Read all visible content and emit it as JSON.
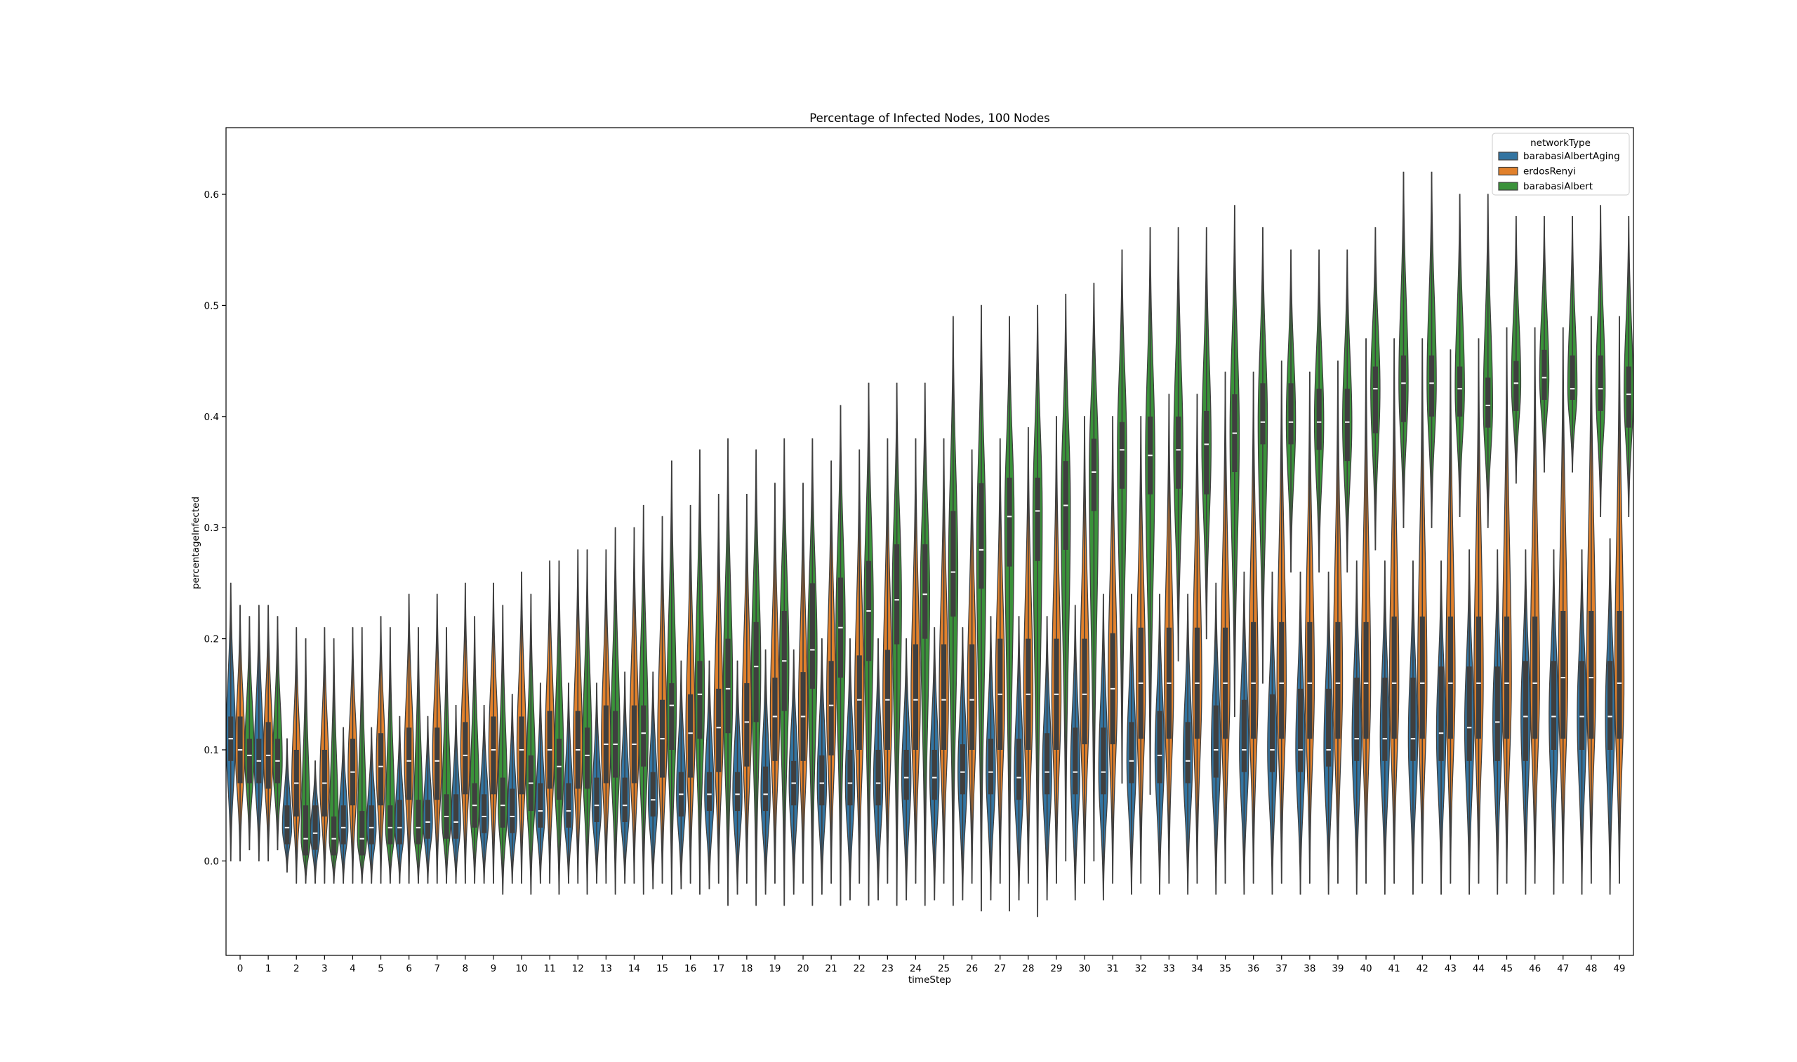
{
  "chart_data": {
    "type": "violin",
    "title": "Percentage of Infected Nodes, 100 Nodes",
    "xlabel": "timeStep",
    "ylabel": "percentageInfected",
    "ylim": [
      -0.085,
      0.66
    ],
    "yticks": [
      "0.0",
      "0.1",
      "0.2",
      "0.3",
      "0.4",
      "0.5",
      "0.6"
    ],
    "categories": [
      "0",
      "1",
      "2",
      "3",
      "4",
      "5",
      "6",
      "7",
      "8",
      "9",
      "10",
      "11",
      "12",
      "13",
      "14",
      "15",
      "16",
      "17",
      "18",
      "19",
      "20",
      "21",
      "22",
      "23",
      "24",
      "25",
      "26",
      "27",
      "28",
      "29",
      "30",
      "31",
      "32",
      "33",
      "34",
      "35",
      "36",
      "37",
      "38",
      "39",
      "40",
      "41",
      "42",
      "43",
      "44",
      "45",
      "46",
      "47",
      "48",
      "49"
    ],
    "legend": {
      "title": "networkType",
      "placement": "top-right",
      "entries": [
        "barabasiAlbertAging",
        "erdosRenyi",
        "barabasiAlbert"
      ]
    },
    "colors": {
      "barabasiAlbertAging": "#3274a1",
      "erdosRenyi": "#e1812c",
      "barabasiAlbert": "#3a923a",
      "outline": "#3f3f3f"
    },
    "series": [
      {
        "name": "barabasiAlbertAging",
        "median": [
          0.11,
          0.09,
          0.03,
          0.025,
          0.03,
          0.03,
          0.03,
          0.035,
          0.035,
          0.04,
          0.04,
          0.045,
          0.045,
          0.05,
          0.05,
          0.055,
          0.06,
          0.06,
          0.06,
          0.06,
          0.07,
          0.07,
          0.07,
          0.07,
          0.075,
          0.075,
          0.08,
          0.08,
          0.075,
          0.08,
          0.08,
          0.08,
          0.09,
          0.095,
          0.09,
          0.1,
          0.1,
          0.1,
          0.1,
          0.1,
          0.11,
          0.11,
          0.11,
          0.115,
          0.12,
          0.125,
          0.13,
          0.13,
          0.13,
          0.13
        ],
        "q1": [
          0.09,
          0.07,
          0.015,
          0.01,
          0.015,
          0.015,
          0.015,
          0.02,
          0.02,
          0.025,
          0.025,
          0.03,
          0.03,
          0.035,
          0.035,
          0.04,
          0.04,
          0.045,
          0.045,
          0.045,
          0.05,
          0.05,
          0.05,
          0.05,
          0.055,
          0.055,
          0.06,
          0.06,
          0.055,
          0.06,
          0.06,
          0.06,
          0.07,
          0.07,
          0.07,
          0.075,
          0.08,
          0.08,
          0.08,
          0.085,
          0.09,
          0.09,
          0.09,
          0.09,
          0.09,
          0.09,
          0.09,
          0.1,
          0.1,
          0.1
        ],
        "q3": [
          0.13,
          0.11,
          0.05,
          0.05,
          0.05,
          0.05,
          0.055,
          0.055,
          0.06,
          0.06,
          0.065,
          0.07,
          0.07,
          0.075,
          0.075,
          0.08,
          0.08,
          0.08,
          0.08,
          0.085,
          0.09,
          0.095,
          0.1,
          0.1,
          0.1,
          0.1,
          0.105,
          0.11,
          0.11,
          0.115,
          0.12,
          0.12,
          0.125,
          0.135,
          0.125,
          0.14,
          0.145,
          0.15,
          0.155,
          0.155,
          0.165,
          0.165,
          0.165,
          0.175,
          0.175,
          0.175,
          0.18,
          0.18,
          0.18,
          0.18
        ],
        "min": [
          0.0,
          0.0,
          -0.01,
          -0.02,
          -0.02,
          -0.02,
          -0.02,
          -0.02,
          -0.02,
          -0.02,
          -0.02,
          -0.02,
          -0.02,
          -0.02,
          -0.02,
          -0.025,
          -0.025,
          -0.025,
          -0.03,
          -0.03,
          -0.03,
          -0.03,
          -0.035,
          -0.035,
          -0.035,
          -0.035,
          -0.035,
          -0.035,
          -0.035,
          -0.035,
          -0.035,
          -0.035,
          -0.03,
          -0.03,
          -0.03,
          -0.03,
          -0.03,
          -0.03,
          -0.03,
          -0.03,
          -0.03,
          -0.03,
          -0.03,
          -0.03,
          -0.03,
          -0.03,
          -0.03,
          -0.03,
          -0.03,
          -0.03
        ],
        "max": [
          0.25,
          0.23,
          0.11,
          0.09,
          0.12,
          0.12,
          0.13,
          0.13,
          0.14,
          0.14,
          0.15,
          0.16,
          0.16,
          0.16,
          0.17,
          0.17,
          0.18,
          0.18,
          0.18,
          0.19,
          0.19,
          0.2,
          0.2,
          0.2,
          0.2,
          0.21,
          0.21,
          0.22,
          0.22,
          0.22,
          0.23,
          0.24,
          0.24,
          0.24,
          0.24,
          0.25,
          0.26,
          0.26,
          0.26,
          0.26,
          0.27,
          0.27,
          0.27,
          0.27,
          0.28,
          0.28,
          0.28,
          0.28,
          0.28,
          0.29
        ]
      },
      {
        "name": "erdosRenyi",
        "median": [
          0.1,
          0.095,
          0.07,
          0.07,
          0.08,
          0.085,
          0.09,
          0.09,
          0.095,
          0.1,
          0.1,
          0.1,
          0.1,
          0.105,
          0.105,
          0.11,
          0.115,
          0.12,
          0.125,
          0.13,
          0.13,
          0.14,
          0.145,
          0.145,
          0.145,
          0.145,
          0.145,
          0.15,
          0.15,
          0.15,
          0.15,
          0.155,
          0.16,
          0.16,
          0.16,
          0.16,
          0.16,
          0.16,
          0.16,
          0.16,
          0.16,
          0.16,
          0.16,
          0.16,
          0.16,
          0.16,
          0.16,
          0.165,
          0.165,
          0.16
        ],
        "q1": [
          0.07,
          0.065,
          0.04,
          0.04,
          0.05,
          0.05,
          0.055,
          0.055,
          0.06,
          0.06,
          0.06,
          0.065,
          0.065,
          0.07,
          0.07,
          0.075,
          0.075,
          0.08,
          0.085,
          0.09,
          0.09,
          0.095,
          0.1,
          0.1,
          0.1,
          0.1,
          0.1,
          0.1,
          0.1,
          0.1,
          0.105,
          0.105,
          0.11,
          0.11,
          0.11,
          0.11,
          0.11,
          0.11,
          0.11,
          0.11,
          0.11,
          0.11,
          0.11,
          0.11,
          0.11,
          0.11,
          0.11,
          0.11,
          0.11,
          0.11
        ],
        "q3": [
          0.13,
          0.125,
          0.1,
          0.1,
          0.11,
          0.115,
          0.12,
          0.12,
          0.125,
          0.13,
          0.13,
          0.135,
          0.135,
          0.14,
          0.14,
          0.145,
          0.15,
          0.155,
          0.16,
          0.165,
          0.17,
          0.18,
          0.185,
          0.19,
          0.195,
          0.195,
          0.195,
          0.2,
          0.2,
          0.2,
          0.2,
          0.205,
          0.21,
          0.21,
          0.21,
          0.21,
          0.215,
          0.215,
          0.215,
          0.215,
          0.215,
          0.22,
          0.22,
          0.22,
          0.22,
          0.22,
          0.22,
          0.225,
          0.225,
          0.225
        ],
        "min": [
          0.0,
          0.0,
          -0.02,
          -0.02,
          -0.02,
          -0.02,
          -0.02,
          -0.02,
          -0.02,
          -0.02,
          -0.02,
          -0.02,
          -0.02,
          -0.02,
          -0.02,
          -0.02,
          -0.02,
          -0.02,
          -0.02,
          -0.02,
          -0.02,
          -0.02,
          -0.02,
          -0.02,
          -0.02,
          -0.02,
          -0.02,
          -0.02,
          -0.02,
          -0.02,
          -0.02,
          -0.02,
          -0.02,
          -0.02,
          -0.02,
          -0.02,
          -0.02,
          -0.02,
          -0.02,
          -0.02,
          -0.02,
          -0.02,
          -0.02,
          -0.02,
          -0.02,
          -0.02,
          -0.02,
          -0.02,
          -0.02,
          -0.02
        ],
        "max": [
          0.23,
          0.23,
          0.21,
          0.21,
          0.21,
          0.22,
          0.24,
          0.24,
          0.25,
          0.25,
          0.26,
          0.27,
          0.28,
          0.28,
          0.3,
          0.31,
          0.32,
          0.33,
          0.33,
          0.34,
          0.34,
          0.36,
          0.37,
          0.38,
          0.38,
          0.38,
          0.37,
          0.38,
          0.39,
          0.4,
          0.4,
          0.4,
          0.4,
          0.42,
          0.42,
          0.44,
          0.44,
          0.45,
          0.44,
          0.45,
          0.47,
          0.47,
          0.47,
          0.46,
          0.47,
          0.48,
          0.48,
          0.48,
          0.49,
          0.49
        ]
      },
      {
        "name": "barabasiAlbert",
        "median": [
          0.095,
          0.09,
          0.02,
          0.02,
          0.02,
          0.03,
          0.03,
          0.04,
          0.05,
          0.05,
          0.07,
          0.085,
          0.095,
          0.105,
          0.115,
          0.14,
          0.15,
          0.155,
          0.175,
          0.18,
          0.19,
          0.21,
          0.225,
          0.235,
          0.24,
          0.26,
          0.28,
          0.31,
          0.315,
          0.32,
          0.35,
          0.37,
          0.365,
          0.37,
          0.375,
          0.385,
          0.395,
          0.395,
          0.395,
          0.395,
          0.425,
          0.43,
          0.43,
          0.425,
          0.41,
          0.43,
          0.435,
          0.425,
          0.425,
          0.42
        ],
        "q1": [
          0.07,
          0.07,
          0.005,
          0.005,
          0.005,
          0.015,
          0.015,
          0.02,
          0.03,
          0.03,
          0.045,
          0.055,
          0.065,
          0.075,
          0.085,
          0.1,
          0.11,
          0.115,
          0.125,
          0.135,
          0.155,
          0.165,
          0.18,
          0.195,
          0.2,
          0.22,
          0.245,
          0.265,
          0.27,
          0.28,
          0.315,
          0.335,
          0.33,
          0.335,
          0.33,
          0.35,
          0.375,
          0.375,
          0.37,
          0.36,
          0.385,
          0.395,
          0.4,
          0.4,
          0.39,
          0.405,
          0.415,
          0.415,
          0.405,
          0.39
        ],
        "q3": [
          0.11,
          0.11,
          0.05,
          0.04,
          0.045,
          0.05,
          0.055,
          0.06,
          0.07,
          0.075,
          0.095,
          0.11,
          0.12,
          0.135,
          0.14,
          0.16,
          0.18,
          0.2,
          0.215,
          0.225,
          0.25,
          0.255,
          0.27,
          0.285,
          0.285,
          0.315,
          0.34,
          0.345,
          0.345,
          0.36,
          0.38,
          0.395,
          0.4,
          0.4,
          0.405,
          0.42,
          0.43,
          0.43,
          0.425,
          0.425,
          0.445,
          0.455,
          0.455,
          0.445,
          0.435,
          0.45,
          0.46,
          0.455,
          0.455,
          0.445
        ],
        "min": [
          0.01,
          0.01,
          -0.02,
          -0.02,
          -0.02,
          -0.02,
          -0.02,
          -0.02,
          -0.02,
          -0.03,
          -0.03,
          -0.03,
          -0.03,
          -0.03,
          -0.03,
          -0.03,
          -0.03,
          -0.04,
          -0.04,
          -0.04,
          -0.04,
          -0.04,
          -0.04,
          -0.04,
          -0.04,
          -0.04,
          -0.045,
          -0.045,
          -0.05,
          0.0,
          0.0,
          0.07,
          0.06,
          0.18,
          0.2,
          0.13,
          0.16,
          0.26,
          0.26,
          0.26,
          0.28,
          0.3,
          0.3,
          0.31,
          0.3,
          0.34,
          0.35,
          0.35,
          0.31,
          0.31
        ],
        "max": [
          0.22,
          0.22,
          0.2,
          0.2,
          0.21,
          0.21,
          0.21,
          0.21,
          0.22,
          0.23,
          0.24,
          0.27,
          0.28,
          0.3,
          0.32,
          0.36,
          0.37,
          0.38,
          0.37,
          0.38,
          0.38,
          0.41,
          0.43,
          0.43,
          0.43,
          0.49,
          0.5,
          0.49,
          0.5,
          0.51,
          0.52,
          0.55,
          0.57,
          0.57,
          0.57,
          0.59,
          0.57,
          0.55,
          0.55,
          0.55,
          0.57,
          0.62,
          0.62,
          0.6,
          0.6,
          0.58,
          0.58,
          0.58,
          0.59,
          0.58
        ]
      }
    ]
  }
}
